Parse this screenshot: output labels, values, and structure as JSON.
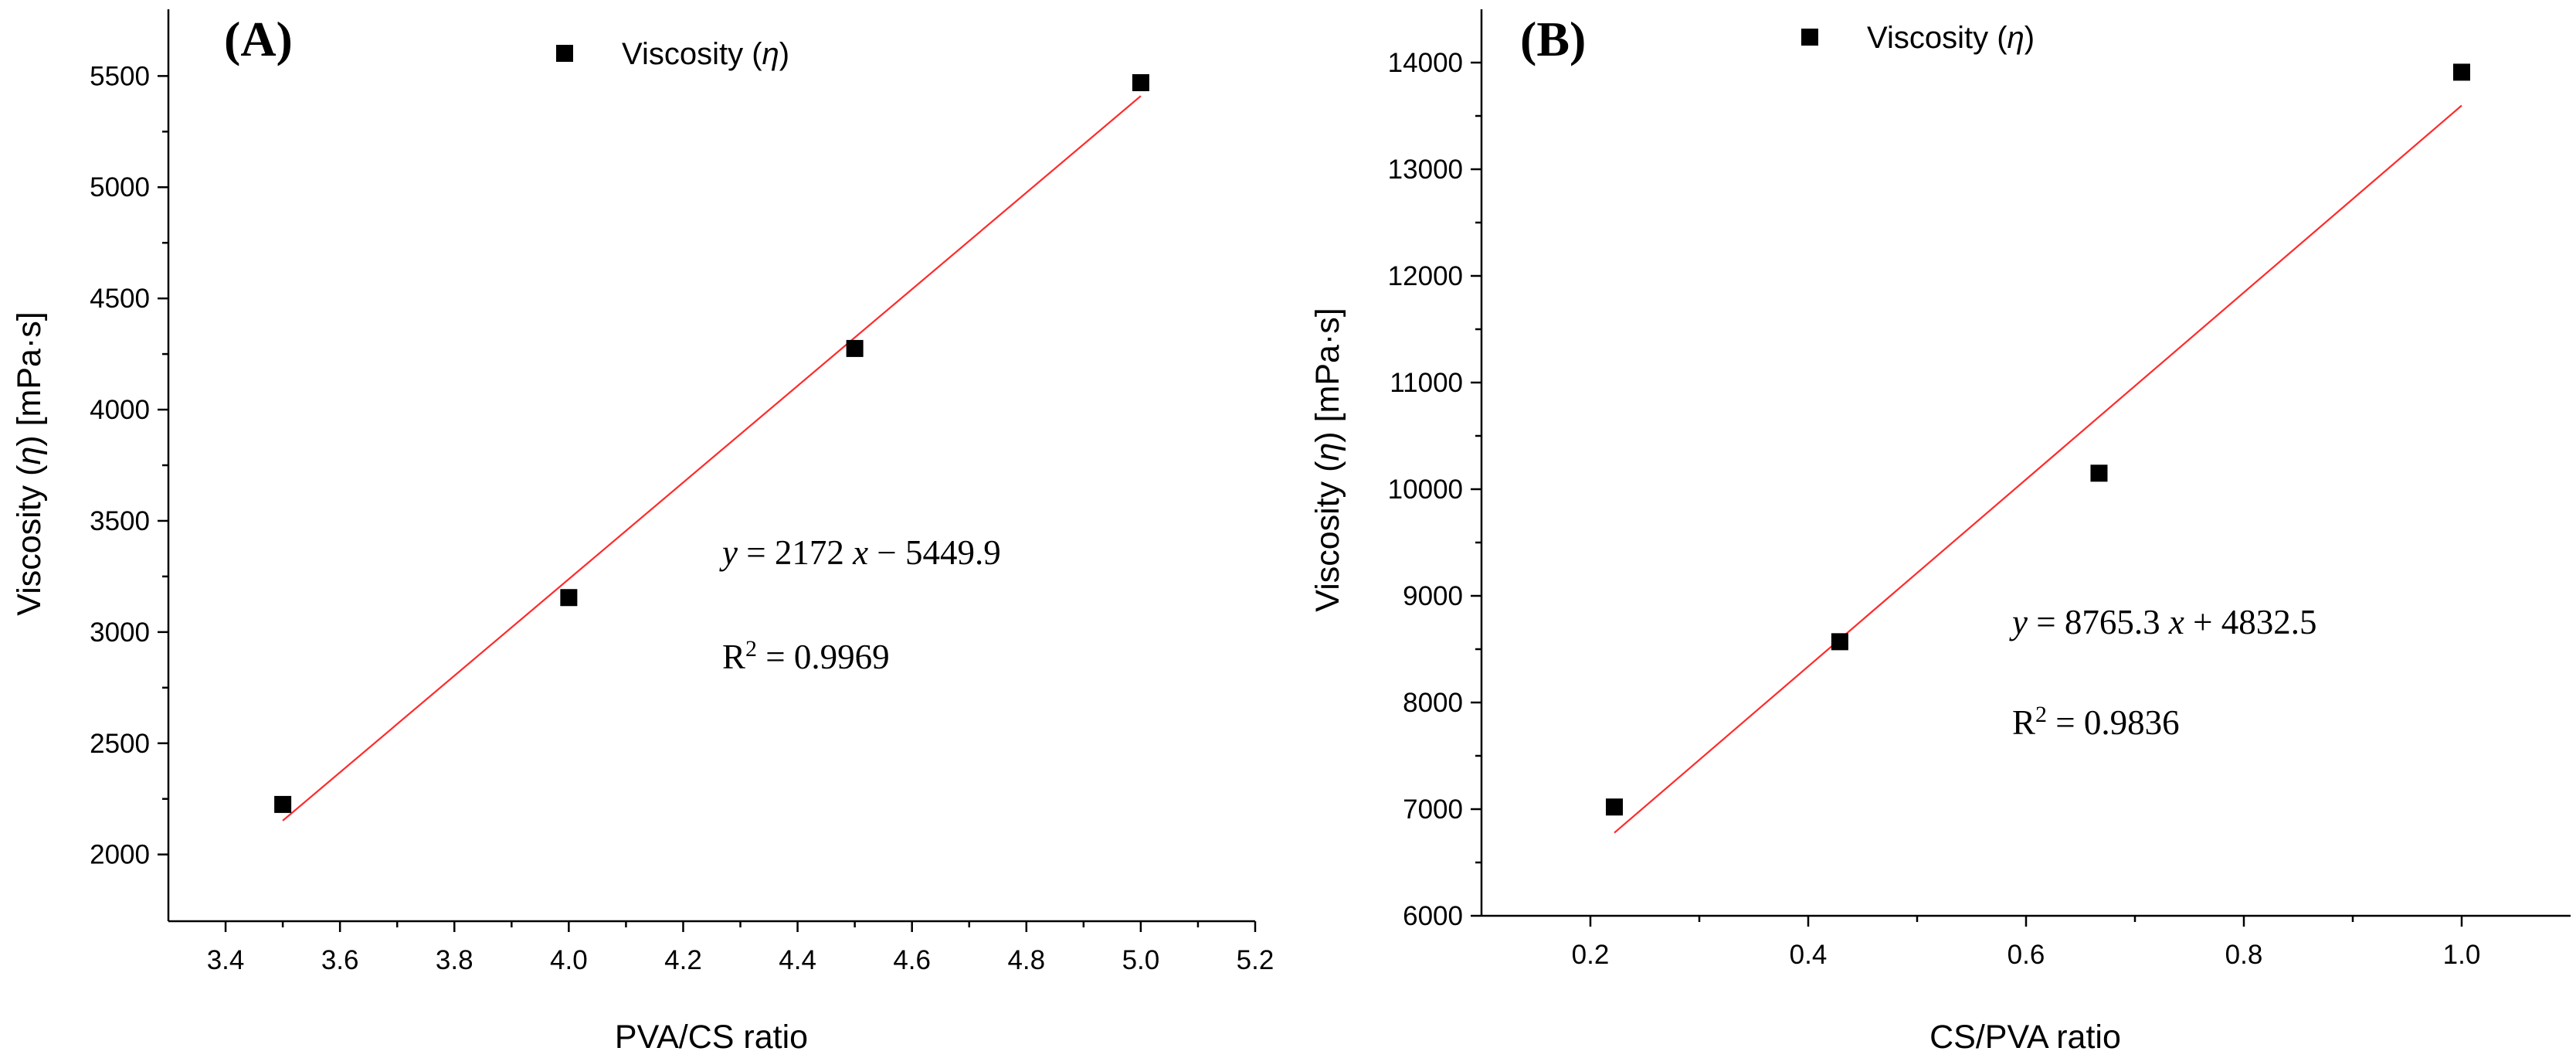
{
  "chart_data": [
    {
      "type": "scatter",
      "panel_label": "(A)",
      "legend": {
        "label": "Viscosity (",
        "symbol": "η",
        "close": ")",
        "placement": "top-center"
      },
      "xlabel": "PVA/CS ratio",
      "ylabel": {
        "text": "Viscosity (",
        "symbol": "η",
        "unit": ") [mPa·s]"
      },
      "xlim": [
        3.3,
        5.2
      ],
      "ylim": [
        1700,
        5800
      ],
      "xticks": [
        3.4,
        3.6,
        3.8,
        4.0,
        4.2,
        4.4,
        4.6,
        4.8,
        5.0,
        5.2
      ],
      "xtick_labels": [
        "3.4",
        "3.6",
        "3.8",
        "4.0",
        "4.2",
        "4.4",
        "4.6",
        "4.8",
        "5.0",
        "5.2"
      ],
      "yticks": [
        2000,
        2500,
        3000,
        3500,
        4000,
        4500,
        5000,
        5500
      ],
      "ytick_labels": [
        "2000",
        "2500",
        "3000",
        "3500",
        "4000",
        "4500",
        "5000",
        "5500"
      ],
      "series": [
        {
          "name": "Viscosity (η)",
          "x": [
            3.5,
            4.0,
            4.5,
            5.0
          ],
          "y": [
            2225,
            3155,
            4275,
            5470
          ]
        }
      ],
      "fit": {
        "slope": 2172,
        "intercept": -5449.9,
        "x_range": [
          3.5,
          5.0
        ]
      },
      "equation": {
        "y": "y",
        "eq": " = 2172 ",
        "x": "x",
        "rest": " − 5449.9"
      },
      "r2": {
        "r": "R",
        "sup": "2",
        "rest": " = 0.9969"
      }
    },
    {
      "type": "scatter",
      "panel_label": "(B)",
      "legend": {
        "label": "Viscosity (",
        "symbol": "η",
        "close": ")",
        "placement": "top-center"
      },
      "xlabel": "CS/PVA ratio",
      "ylabel": {
        "text": "Viscosity (",
        "symbol": "η",
        "unit": ") [mPa·s]"
      },
      "xlim": [
        0.1,
        1.1
      ],
      "ylim": [
        6000,
        14500
      ],
      "xticks": [
        0.2,
        0.4,
        0.6,
        0.8,
        1.0
      ],
      "xtick_labels": [
        "0.2",
        "0.4",
        "0.6",
        "0.8",
        "1.0"
      ],
      "yticks": [
        6000,
        7000,
        8000,
        9000,
        10000,
        11000,
        12000,
        13000,
        14000
      ],
      "ytick_labels": [
        "6000",
        "7000",
        "8000",
        "9000",
        "10000",
        "11000",
        "12000",
        "13000",
        "14000"
      ],
      "series": [
        {
          "name": "Viscosity (η)",
          "x": [
            0.222,
            0.429,
            0.667,
            1.0
          ],
          "y": [
            7020,
            8570,
            10150,
            13910
          ]
        }
      ],
      "fit": {
        "slope": 8765.3,
        "intercept": 4832.5,
        "x_range": [
          0.222,
          1.0
        ]
      },
      "equation": {
        "y": "y",
        "eq": " = 8765.3 ",
        "x": "x",
        "rest": " + 4832.5"
      },
      "r2": {
        "r": "R",
        "sup": "2",
        "rest": " = 0.9836"
      }
    }
  ],
  "colors": {
    "fit_line": "#ff2a2a",
    "marker": "#000000"
  }
}
